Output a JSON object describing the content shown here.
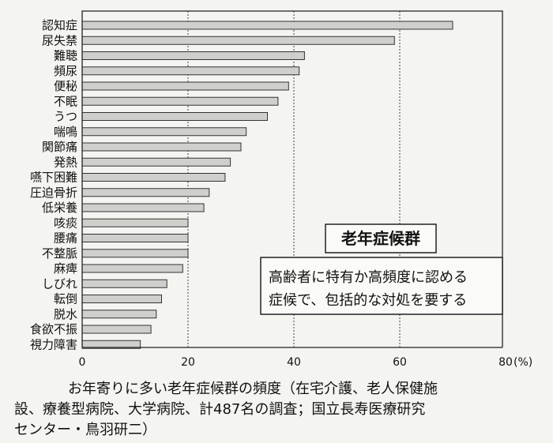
{
  "chart_data": {
    "type": "bar",
    "orientation": "horizontal",
    "categories": [
      "認知症",
      "尿失禁",
      "難聴",
      "頻尿",
      "便秘",
      "不眠",
      "うつ",
      "喘鳴",
      "関節痛",
      "発熱",
      "嚥下困難",
      "圧迫骨折",
      "低栄養",
      "咳痰",
      "腰痛",
      "不整脈",
      "麻痺",
      "しびれ",
      "転倒",
      "脱水",
      "食欲不振",
      "視力障害"
    ],
    "values": [
      70,
      59,
      42,
      41,
      39,
      37,
      35,
      31,
      30,
      28,
      27,
      24,
      23,
      20,
      20,
      20,
      19,
      16,
      15,
      14,
      13,
      11
    ],
    "xlim": [
      0,
      80
    ],
    "xticks": [
      "0",
      "20",
      "40",
      "60",
      "80"
    ],
    "unit": "(%)",
    "grid": "dotted vertical at 20, 40, 60"
  },
  "box": {
    "title": "老年症候群",
    "line1": "高齢者に特有か高頻度に認める",
    "line2": "症候で、包括的な対処を要する"
  },
  "caption": {
    "line1": "お年寄りに多い老年症候群の頻度（在宅介護、老人保健施",
    "line2": "設、療養型病院、大学病院、計487名の調査；国立長寿医療研究",
    "line3": "センター・鳥羽研二）"
  }
}
